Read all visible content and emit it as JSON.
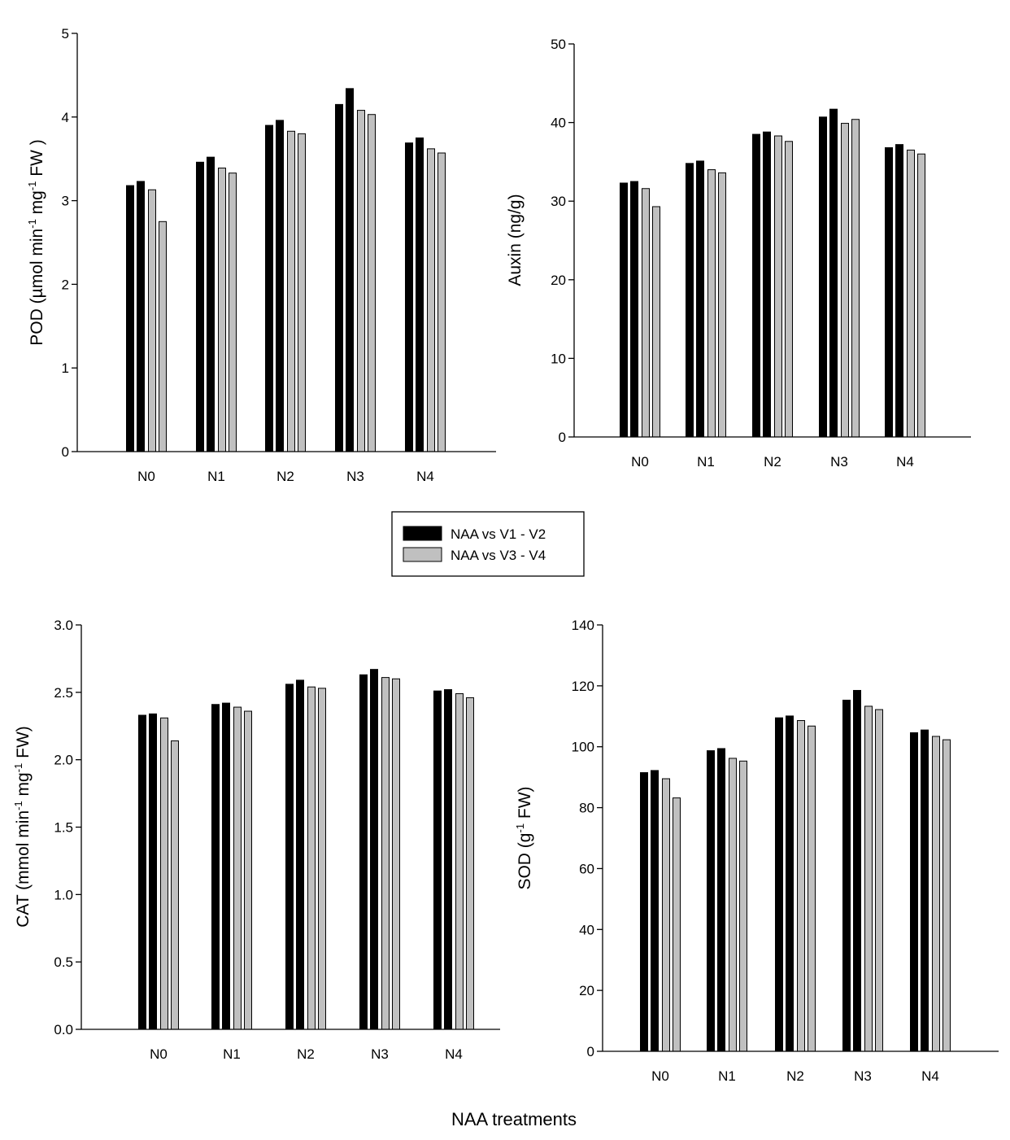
{
  "colors": {
    "series_dark": "#000000",
    "series_light": "#c0c0c0",
    "axis": "#000000"
  },
  "legend": {
    "items": [
      {
        "label": "NAA vs V1 - V2",
        "color": "#000000"
      },
      {
        "label": "NAA vs V3 - V4",
        "color": "#c0c0c0"
      }
    ]
  },
  "x_title": "NAA treatments",
  "chart_data": [
    {
      "type": "bar",
      "panel": "top-left",
      "ylabel": {
        "base": "POD (µmol  min",
        "sup1": "-1",
        "mid": " mg",
        "sup2": "-1",
        "end": " FW )"
      },
      "ylim": [
        0,
        5
      ],
      "yticks": [
        "0",
        "1",
        "2",
        "3",
        "4",
        "5"
      ],
      "categories": [
        "N0",
        "N1",
        "N2",
        "N3",
        "N4"
      ],
      "series": [
        {
          "values": [
            3.18,
            3.46,
            3.9,
            4.15,
            3.69
          ],
          "color": "#000000"
        },
        {
          "values": [
            3.23,
            3.52,
            3.96,
            4.34,
            3.75
          ],
          "color": "#000000"
        },
        {
          "values": [
            3.13,
            3.39,
            3.83,
            4.08,
            3.62
          ],
          "color": "#c0c0c0"
        },
        {
          "values": [
            2.75,
            3.33,
            3.8,
            4.03,
            3.57
          ],
          "color": "#c0c0c0"
        }
      ]
    },
    {
      "type": "bar",
      "panel": "top-right",
      "ylabel": {
        "base": "Auxin (ng/g)",
        "sup1": "",
        "mid": "",
        "sup2": "",
        "end": ""
      },
      "ylim": [
        0,
        50
      ],
      "yticks": [
        "0",
        "10",
        "20",
        "30",
        "40",
        "50"
      ],
      "categories": [
        "N0",
        "N1",
        "N2",
        "N3",
        "N4"
      ],
      "series": [
        {
          "values": [
            32.3,
            34.8,
            38.5,
            40.7,
            36.8
          ],
          "color": "#000000"
        },
        {
          "values": [
            32.5,
            35.1,
            38.8,
            41.7,
            37.2
          ],
          "color": "#000000"
        },
        {
          "values": [
            31.6,
            34.0,
            38.3,
            39.9,
            36.5
          ],
          "color": "#c0c0c0"
        },
        {
          "values": [
            29.3,
            33.6,
            37.6,
            40.4,
            36.0
          ],
          "color": "#c0c0c0"
        }
      ]
    },
    {
      "type": "bar",
      "panel": "bottom-left",
      "ylabel": {
        "base": "CAT (mmol min",
        "sup1": "-1",
        "mid": " mg",
        "sup2": "-1",
        "end": " FW)"
      },
      "ylim": [
        0,
        3
      ],
      "yticks": [
        "0.0",
        "0.5",
        "1.0",
        "1.5",
        "2.0",
        "2.5",
        "3.0"
      ],
      "categories": [
        "N0",
        "N1",
        "N2",
        "N3",
        "N4"
      ],
      "series": [
        {
          "values": [
            2.33,
            2.41,
            2.56,
            2.63,
            2.51
          ],
          "color": "#000000"
        },
        {
          "values": [
            2.34,
            2.42,
            2.59,
            2.67,
            2.52
          ],
          "color": "#000000"
        },
        {
          "values": [
            2.31,
            2.39,
            2.54,
            2.61,
            2.49
          ],
          "color": "#c0c0c0"
        },
        {
          "values": [
            2.14,
            2.36,
            2.53,
            2.6,
            2.46
          ],
          "color": "#c0c0c0"
        }
      ]
    },
    {
      "type": "bar",
      "panel": "bottom-right",
      "ylabel": {
        "base": "SOD (g",
        "sup1": "-1",
        "mid": " FW)",
        "sup2": "",
        "end": ""
      },
      "ylim": [
        0,
        140
      ],
      "yticks": [
        "0",
        "20",
        "40",
        "60",
        "80",
        "100",
        "120",
        "140"
      ],
      "categories": [
        "N0",
        "N1",
        "N2",
        "N3",
        "N4"
      ],
      "series": [
        {
          "values": [
            91.5,
            98.7,
            109.5,
            115.3,
            104.6
          ],
          "color": "#000000"
        },
        {
          "values": [
            92.2,
            99.4,
            110.1,
            118.5,
            105.5
          ],
          "color": "#000000"
        },
        {
          "values": [
            89.5,
            96.2,
            108.6,
            113.3,
            103.4
          ],
          "color": "#c0c0c0"
        },
        {
          "values": [
            83.2,
            95.3,
            106.8,
            112.2,
            102.3
          ],
          "color": "#c0c0c0"
        }
      ]
    }
  ]
}
